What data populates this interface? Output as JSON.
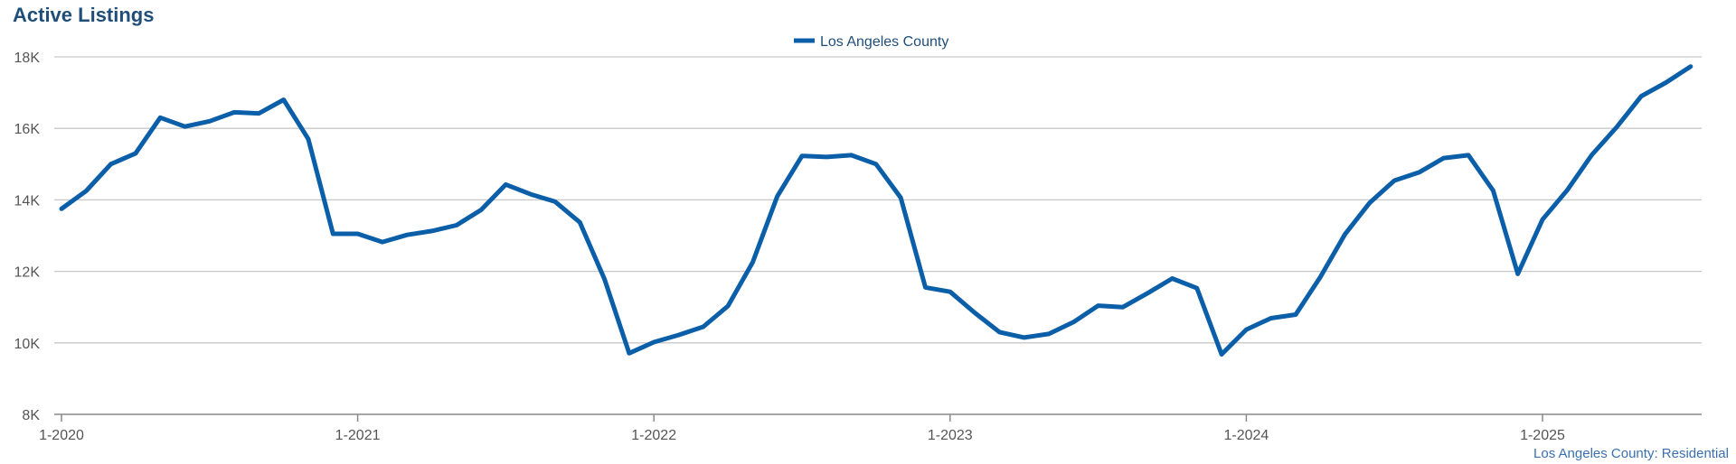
{
  "page": {
    "title": "Active Listings"
  },
  "source_note": "Los Angeles County: Residential",
  "colors": {
    "series": "#0b5ea8",
    "grid": "#c8c8c8",
    "axis": "#888888",
    "title": "#1f4e79"
  },
  "chart_data": {
    "type": "line",
    "title": "Active Listings",
    "xlabel": "",
    "ylabel": "",
    "ylim": [
      8000,
      18000
    ],
    "y_ticks": [
      {
        "value": 8000,
        "label": "8K"
      },
      {
        "value": 10000,
        "label": "10K"
      },
      {
        "value": 12000,
        "label": "12K"
      },
      {
        "value": 14000,
        "label": "14K"
      },
      {
        "value": 16000,
        "label": "16K"
      },
      {
        "value": 18000,
        "label": "18K"
      }
    ],
    "x_ticks": [
      {
        "index": 0,
        "label": "1-2020"
      },
      {
        "index": 12,
        "label": "1-2021"
      },
      {
        "index": 24,
        "label": "1-2022"
      },
      {
        "index": 36,
        "label": "1-2023"
      },
      {
        "index": 48,
        "label": "1-2024"
      },
      {
        "index": 60,
        "label": "1-2025"
      }
    ],
    "grid": true,
    "legend": "top-center",
    "x_period_start": "2020-01",
    "x_period_step": "1 month",
    "series": [
      {
        "name": "Los Angeles County",
        "values": [
          13750,
          14250,
          15000,
          15300,
          16300,
          16050,
          16200,
          16450,
          16420,
          16800,
          15700,
          13050,
          13050,
          12820,
          13020,
          13130,
          13290,
          13720,
          14430,
          14160,
          13950,
          13370,
          11780,
          9710,
          10020,
          10220,
          10450,
          11030,
          12250,
          14100,
          15230,
          15200,
          15250,
          15000,
          14060,
          11550,
          11430,
          10840,
          10300,
          10150,
          10250,
          10580,
          11040,
          11000,
          11390,
          11800,
          11530,
          9680,
          10370,
          10690,
          10790,
          11840,
          13040,
          13920,
          14540,
          14770,
          15170,
          15250,
          14260,
          11930,
          13450,
          14270,
          15260,
          16030,
          16900,
          17280,
          17730
        ]
      }
    ]
  }
}
